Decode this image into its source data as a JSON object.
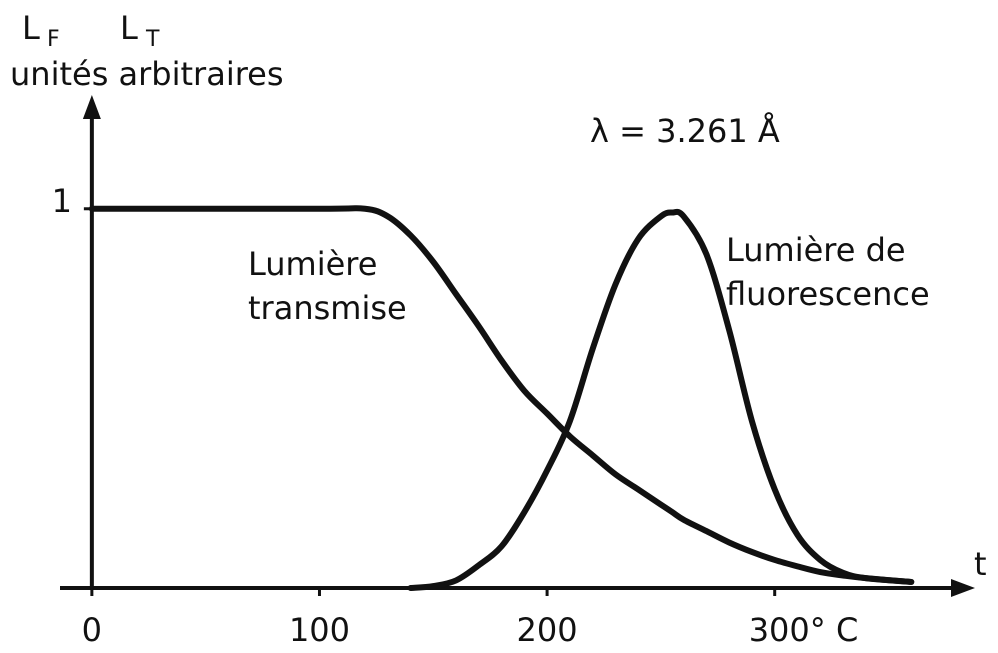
{
  "chart_data": {
    "type": "line",
    "y_symbols": [
      {
        "base": "L",
        "sub": "F"
      },
      {
        "base": "L",
        "sub": "T"
      }
    ],
    "y_label": "unités arbitraires",
    "x_label": "t",
    "annotation": "λ = 3.261 Å",
    "x": [
      0,
      100,
      120,
      130,
      140,
      150,
      160,
      170,
      180,
      190,
      200,
      210,
      220,
      230,
      240,
      250,
      255,
      260,
      270,
      280,
      290,
      300,
      310,
      320,
      330,
      340,
      360
    ],
    "series": [
      {
        "label_lines": [
          "Lumière",
          "transmise"
        ],
        "color": "#111111",
        "values": [
          1,
          1,
          1,
          0.98,
          0.93,
          0.86,
          0.775,
          0.69,
          0.6,
          0.52,
          0.46,
          0.4,
          0.35,
          0.3,
          0.26,
          0.22,
          0.2,
          0.18,
          0.15,
          0.12,
          0.095,
          0.074,
          0.057,
          0.042,
          0.033,
          0.026,
          0.016
        ]
      },
      {
        "label_lines": [
          "Lumière de",
          "fluorescence"
        ],
        "color": "#111111",
        "values": [
          null,
          null,
          null,
          null,
          0,
          0.005,
          0.02,
          0.06,
          0.11,
          0.2,
          0.31,
          0.44,
          0.63,
          0.8,
          0.92,
          0.98,
          0.99,
          0.98,
          0.88,
          0.68,
          0.44,
          0.26,
          0.14,
          0.074,
          0.04,
          0.026,
          0.016
        ]
      }
    ],
    "xlim": [
      -14,
      388
    ],
    "ylim": [
      0,
      1.3
    ],
    "xticks": [
      0,
      100,
      200,
      {
        "value": 300,
        "label": "300° C"
      }
    ],
    "yticks": [
      1
    ]
  }
}
